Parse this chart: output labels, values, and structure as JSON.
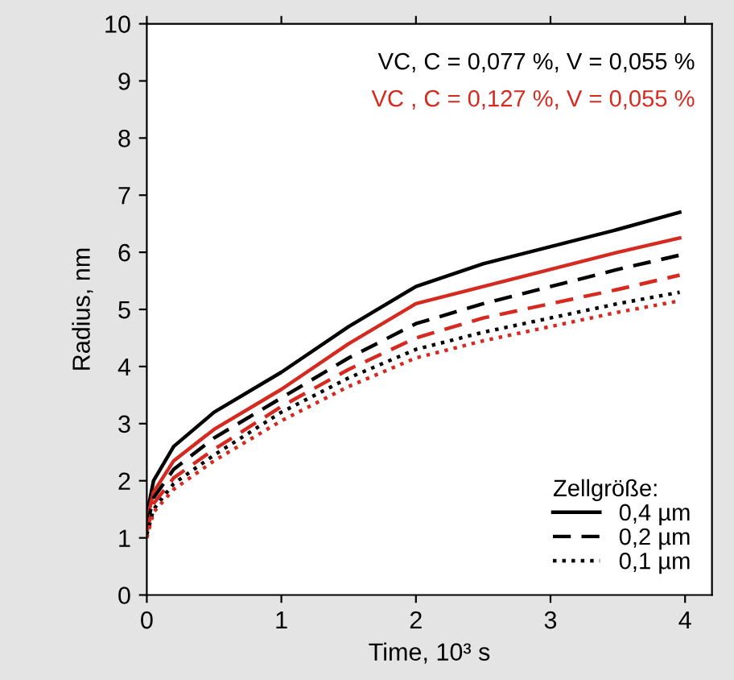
{
  "chart_data": {
    "type": "line",
    "xlabel": "Time, 10³ s",
    "ylabel": "Radius, nm",
    "legend_title": "Zellgröße:",
    "xlim": [
      0,
      4.2
    ],
    "xticks": [
      0,
      1,
      2,
      3,
      4
    ],
    "ylim": [
      0,
      10
    ],
    "yticks": [
      0,
      1,
      2,
      3,
      4,
      5,
      6,
      7,
      8,
      9,
      10
    ],
    "grid": false,
    "legend": "bottom right",
    "marker": "none",
    "annotations": [
      "VC, C = 0,077 %, V = 0,055 %",
      "VC , C = 0,127 %, V = 0,055 %"
    ],
    "x": [
      0,
      0.05,
      0.2,
      0.5,
      1,
      1.5,
      2,
      2.5,
      3,
      3.5,
      3.96
    ],
    "series": [
      {
        "name": "0,4 µm",
        "color": "#000000",
        "line_style": "solid",
        "values": [
          1.4,
          2.0,
          2.6,
          3.2,
          3.9,
          4.7,
          5.4,
          5.8,
          6.1,
          6.4,
          6.7
        ]
      },
      {
        "color": "#d42a20",
        "line_style": "solid",
        "values": [
          1.3,
          1.8,
          2.35,
          2.9,
          3.6,
          4.4,
          5.1,
          5.4,
          5.7,
          6.0,
          6.25
        ]
      },
      {
        "name": "0,2 µm",
        "color": "#000000",
        "line_style": "dashed",
        "values": [
          1.2,
          1.7,
          2.2,
          2.75,
          3.45,
          4.15,
          4.75,
          5.1,
          5.4,
          5.7,
          5.95
        ]
      },
      {
        "color": "#d42a20",
        "line_style": "dashed",
        "values": [
          1.1,
          1.6,
          2.05,
          2.55,
          3.3,
          3.95,
          4.5,
          4.85,
          5.1,
          5.35,
          5.6
        ]
      },
      {
        "name": "0,1 µm",
        "color": "#000000",
        "line_style": "dotted",
        "values": [
          1.05,
          1.5,
          1.95,
          2.45,
          3.2,
          3.8,
          4.3,
          4.6,
          4.85,
          5.1,
          5.3
        ]
      },
      {
        "color": "#d42a20",
        "line_style": "dotted",
        "values": [
          1.0,
          1.45,
          1.85,
          2.35,
          3.05,
          3.65,
          4.15,
          4.45,
          4.7,
          4.95,
          5.15
        ]
      }
    ]
  }
}
